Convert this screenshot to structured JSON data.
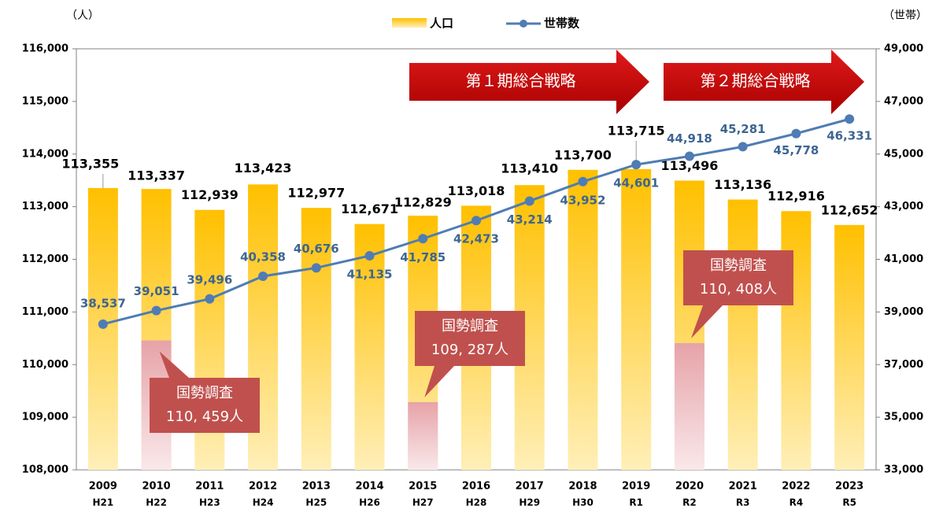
{
  "chart_data": {
    "type": "bar_line",
    "y_unit": "（人）",
    "y2_unit": "（世帯）",
    "categories": [
      "2009",
      "2010",
      "2011",
      "2012",
      "2013",
      "2014",
      "2015",
      "2016",
      "2017",
      "2018",
      "2019",
      "2020",
      "2021",
      "2022",
      "2023"
    ],
    "sub_categories": [
      "H21",
      "H22",
      "H23",
      "H24",
      "H25",
      "H26",
      "H27",
      "H28",
      "H29",
      "H30",
      "R1",
      "R2",
      "R3",
      "R4",
      "R5"
    ],
    "series": [
      {
        "name": "人口",
        "kind": "bar",
        "color": "#ffc000",
        "values": [
          113355,
          113337,
          112939,
          113423,
          112977,
          112671,
          112829,
          113018,
          113410,
          113700,
          113715,
          113496,
          113136,
          112916,
          112652
        ],
        "value_labels": [
          "113,355",
          "113,337",
          "112,939",
          "113,423",
          "112,977",
          "112,671",
          "112,829",
          "113,018",
          "113,410",
          "113,700",
          "113,715",
          "113,496",
          "113,136",
          "112,916",
          "112,652"
        ]
      },
      {
        "name": "世帯数",
        "kind": "line",
        "axis": "y2",
        "color": "#4f7cb4",
        "values": [
          38537,
          39051,
          39496,
          40358,
          40676,
          41135,
          41785,
          42473,
          43214,
          43952,
          44601,
          44918,
          45281,
          45778,
          46331
        ],
        "value_labels": [
          "38,537",
          "39,051",
          "39,496",
          "40,358",
          "40,676",
          "41,135",
          "41,785",
          "42,473",
          "43,214",
          "43,952",
          "44,601",
          "44,918",
          "45,281",
          "45,778",
          "46,331"
        ]
      }
    ],
    "census": {
      "label": "国勢調査",
      "color": "#e6a3a8",
      "values": [
        null,
        110459,
        null,
        null,
        null,
        null,
        109287,
        null,
        null,
        null,
        null,
        110408,
        null,
        null,
        null
      ],
      "value_labels": [
        null,
        "110, 459人",
        null,
        null,
        null,
        null,
        "109, 287人",
        null,
        null,
        null,
        null,
        "110, 408人",
        null,
        null,
        null
      ]
    },
    "annotations": [
      "第１期総合戦略",
      "第２期総合戦略"
    ],
    "ylim": [
      108000,
      116000
    ],
    "yticks": [
      {
        "value": 108000,
        "label": "108,000"
      },
      {
        "value": 109000,
        "label": "109,000"
      },
      {
        "value": 110000,
        "label": "110,000"
      },
      {
        "value": 111000,
        "label": "111,000"
      },
      {
        "value": 112000,
        "label": "112,000"
      },
      {
        "value": 113000,
        "label": "113,000"
      },
      {
        "value": 114000,
        "label": "114,000"
      },
      {
        "value": 115000,
        "label": "115,000"
      },
      {
        "value": 116000,
        "label": "116,000"
      }
    ],
    "y2lim": [
      33000,
      49000
    ],
    "y2ticks": [
      {
        "value": 33000,
        "label": "33,000"
      },
      {
        "value": 35000,
        "label": "35,000"
      },
      {
        "value": 37000,
        "label": "37,000"
      },
      {
        "value": 39000,
        "label": "39,000"
      },
      {
        "value": 41000,
        "label": "41,000"
      },
      {
        "value": 43000,
        "label": "43,000"
      },
      {
        "value": 45000,
        "label": "45,000"
      },
      {
        "value": 47000,
        "label": "47,000"
      },
      {
        "value": 49000,
        "label": "49,000"
      }
    ]
  }
}
